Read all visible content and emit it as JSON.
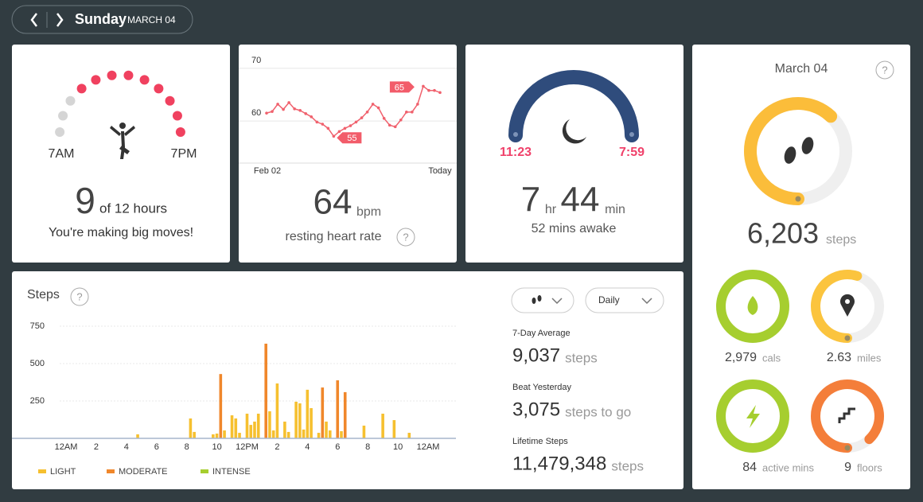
{
  "header": {
    "day": "Sunday",
    "date": "MARCH 04"
  },
  "hourly": {
    "start_label": "7AM",
    "end_label": "7PM",
    "active_hours": 9,
    "total_hours": 12,
    "goal_text": "of 12 hours",
    "message": "You're making big moves!",
    "active_color": "#f0415f",
    "idle_color": "#d5d5d5"
  },
  "heart_rate": {
    "type": "line",
    "color": "#f0616d",
    "ylim": [
      52,
      71.5
    ],
    "yticks": [
      60,
      70
    ],
    "x_labels": [
      "Feb 02",
      "Today"
    ],
    "values": [
      61.5,
      61.8,
      63.2,
      62.2,
      63.5,
      62.3,
      62.0,
      61.4,
      60.8,
      59.8,
      59.4,
      58.6,
      57.1,
      58.0,
      58.6,
      59.1,
      59.8,
      60.6,
      61.7,
      63.2,
      62.5,
      60.5,
      59.2,
      58.9,
      60.2,
      61.7,
      61.7,
      63.2,
      66.6,
      65.8,
      65.8,
      65.4
    ],
    "max_label": 65,
    "min_label": 55,
    "value": 64,
    "unit": "bpm",
    "label": "resting heart rate",
    "help": "?"
  },
  "sleep": {
    "start": "11:23",
    "end": "7:59",
    "hours": 7,
    "hours_unit": "hr",
    "minutes": 44,
    "minutes_unit": "min",
    "awake": "52 mins awake"
  },
  "summary": {
    "date": "March 04",
    "help": "?",
    "steps": {
      "value": 6203,
      "label": "6,203",
      "unit": "steps",
      "progress": 0.62,
      "color": "#fbbd3a"
    },
    "rings": [
      {
        "value": 2979,
        "label": "2,979",
        "unit": "cals",
        "progress": 1,
        "color": "#a6ce2f"
      },
      {
        "value": 2.63,
        "label": "2.63",
        "unit": "miles",
        "progress": 0.55,
        "color": "#fbc43e"
      },
      {
        "value": 84,
        "label": "84",
        "unit": "active mins",
        "progress": 1,
        "color": "#a6ce2f"
      },
      {
        "value": 9,
        "label": "9",
        "unit": "floors",
        "progress": 0.88,
        "color": "#f47e3a"
      }
    ]
  },
  "steps_chart": {
    "type": "bar",
    "title": "Steps",
    "help": "?",
    "dropdown": "Daily",
    "ylim": [
      0,
      750
    ],
    "yticks": [
      250,
      500,
      750
    ],
    "x_labels": [
      "12AM",
      "2",
      "4",
      "6",
      "8",
      "10",
      "12PM",
      "2",
      "4",
      "6",
      "8",
      "10",
      "12AM"
    ],
    "series": [
      {
        "name": "LIGHT",
        "color": "#f6c02f",
        "values": [
          0,
          0,
          0,
          0,
          0,
          0,
          0,
          0,
          0,
          0,
          0,
          0,
          0,
          0,
          0,
          0,
          0,
          0,
          0,
          27,
          0,
          0,
          0,
          0,
          0,
          0,
          0,
          0,
          0,
          0,
          0,
          0,
          0,
          133,
          43,
          0,
          0,
          0,
          0,
          27,
          32,
          0,
          53,
          0,
          154,
          133,
          37,
          0,
          165,
          90,
          112,
          165,
          0,
          0,
          181,
          53,
          367,
          0,
          112,
          43,
          0,
          245,
          234,
          59,
          325,
          202,
          0,
          37,
          0,
          112,
          53,
          0,
          0,
          48,
          0,
          0,
          0,
          0,
          0,
          85,
          0,
          0,
          0,
          0,
          165,
          0,
          0,
          122,
          0,
          0,
          0,
          37,
          0,
          0,
          0,
          0
        ]
      },
      {
        "name": "MODERATE",
        "color": "#f0872b",
        "values": [
          0,
          0,
          0,
          0,
          0,
          0,
          0,
          0,
          0,
          0,
          0,
          0,
          0,
          0,
          0,
          0,
          0,
          0,
          0,
          0,
          0,
          0,
          0,
          0,
          0,
          0,
          0,
          0,
          0,
          0,
          0,
          0,
          0,
          0,
          0,
          0,
          0,
          0,
          0,
          0,
          0,
          430,
          0,
          0,
          0,
          0,
          0,
          0,
          0,
          0,
          0,
          0,
          0,
          633,
          0,
          0,
          0,
          0,
          0,
          0,
          0,
          0,
          0,
          0,
          0,
          0,
          0,
          0,
          340,
          0,
          0,
          0,
          388,
          0,
          309,
          0,
          0,
          0,
          0,
          0,
          0,
          0,
          0,
          0,
          0,
          0,
          0,
          0,
          0,
          0,
          0,
          0,
          0,
          0,
          0,
          0
        ]
      },
      {
        "name": "INTENSE",
        "color": "#a6ce2f",
        "values": [
          0,
          0,
          0,
          0,
          0,
          0,
          0,
          0,
          0,
          0,
          0,
          0,
          0,
          0,
          0,
          0,
          0,
          0,
          0,
          0,
          0,
          0,
          0,
          0,
          0,
          0,
          0,
          0,
          0,
          0,
          0,
          0,
          0,
          0,
          0,
          0,
          0,
          0,
          0,
          0,
          0,
          0,
          0,
          0,
          0,
          0,
          0,
          0,
          0,
          0,
          0,
          0,
          0,
          0,
          0,
          0,
          0,
          0,
          0,
          0,
          0,
          0,
          0,
          0,
          0,
          0,
          0,
          0,
          0,
          0,
          0,
          0,
          0,
          0,
          0,
          0,
          0,
          0,
          0,
          0,
          0,
          0,
          0,
          0,
          0,
          0,
          0,
          0,
          0,
          0,
          0,
          0,
          0,
          0,
          0,
          0
        ]
      }
    ],
    "stats": [
      {
        "label": "7-Day Average",
        "value": 9037,
        "value_label": "9,037",
        "unit": "steps"
      },
      {
        "label": "Beat Yesterday",
        "value": 3075,
        "value_label": "3,075",
        "unit": "steps to go"
      },
      {
        "label": "Lifetime Steps",
        "value": 11479348,
        "value_label": "11,479,348",
        "unit": "steps"
      }
    ]
  }
}
